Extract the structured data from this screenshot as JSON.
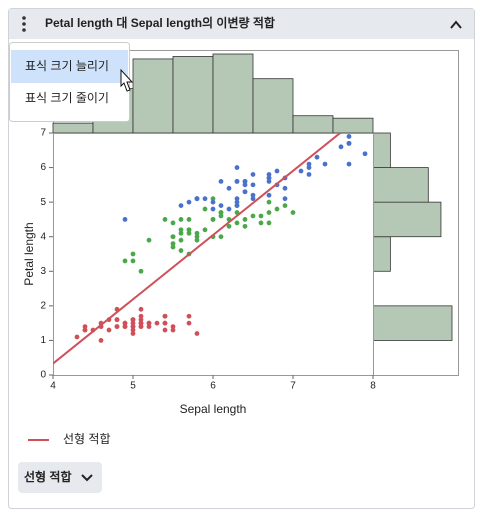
{
  "header": {
    "title": "Petal length 대 Sepal length의 이변량 적합"
  },
  "menu": {
    "items": [
      "표식 크기 늘리기",
      "표식 크기 줄이기"
    ]
  },
  "button": {
    "label": "선형 적합"
  },
  "chart_data": {
    "type": "scatter",
    "xlabel": "Sepal length",
    "ylabel": "Petal length",
    "xlim": [
      4,
      8
    ],
    "ylim": [
      0,
      7
    ],
    "xticks": [
      4,
      5,
      6,
      7,
      8
    ],
    "yticks": [
      0,
      1,
      2,
      3,
      4,
      5,
      6,
      7
    ],
    "series": [
      {
        "color": "#d0505a",
        "x": [
          5.1,
          4.9,
          4.7,
          4.6,
          5.0,
          5.4,
          4.6,
          5.0,
          4.4,
          4.9,
          5.4,
          4.8,
          4.8,
          4.3,
          5.8,
          5.7,
          5.4,
          5.1,
          5.7,
          5.1,
          5.4,
          5.1,
          4.6,
          5.1,
          4.8,
          5.0,
          5.0,
          5.2,
          5.2,
          4.7,
          4.8,
          5.4,
          5.2,
          5.5,
          4.9,
          5.0,
          5.5,
          4.9,
          4.4,
          5.1,
          5.0,
          4.5,
          4.4,
          5.0,
          5.1,
          4.8,
          5.1,
          4.6,
          5.3,
          5.0
        ],
        "values": [
          1.4,
          1.4,
          1.3,
          1.5,
          1.4,
          1.7,
          1.4,
          1.5,
          1.4,
          1.5,
          1.5,
          1.6,
          1.4,
          1.1,
          1.2,
          1.5,
          1.3,
          1.4,
          1.7,
          1.5,
          1.7,
          1.5,
          1.0,
          1.7,
          1.9,
          1.6,
          1.6,
          1.5,
          1.4,
          1.6,
          1.6,
          1.5,
          1.5,
          1.4,
          1.5,
          1.2,
          1.3,
          1.4,
          1.3,
          1.5,
          1.3,
          1.3,
          1.3,
          1.6,
          1.9,
          1.4,
          1.6,
          1.4,
          1.5,
          1.4
        ]
      },
      {
        "color": "#4aa84a",
        "x": [
          7.0,
          6.4,
          6.9,
          5.5,
          6.5,
          5.7,
          6.3,
          4.9,
          6.6,
          5.2,
          5.0,
          5.9,
          6.0,
          6.1,
          5.6,
          6.7,
          5.6,
          5.8,
          6.2,
          5.6,
          5.9,
          6.1,
          6.3,
          6.1,
          6.4,
          6.6,
          6.8,
          6.7,
          6.0,
          5.7,
          5.5,
          5.5,
          5.8,
          6.0,
          5.4,
          6.0,
          6.7,
          6.3,
          5.6,
          5.5,
          5.5,
          6.1,
          5.8,
          5.0,
          5.6,
          5.7,
          5.7,
          6.2,
          5.1,
          5.7
        ],
        "values": [
          4.7,
          4.5,
          4.9,
          4.0,
          4.6,
          4.5,
          4.7,
          3.3,
          4.6,
          3.9,
          3.5,
          4.2,
          4.0,
          4.7,
          3.6,
          4.4,
          4.5,
          4.1,
          4.5,
          3.9,
          4.8,
          4.0,
          4.9,
          4.7,
          4.3,
          4.4,
          4.8,
          5.0,
          4.5,
          3.5,
          3.8,
          3.7,
          3.9,
          5.1,
          4.5,
          4.5,
          4.7,
          4.4,
          4.1,
          4.0,
          4.4,
          4.6,
          4.0,
          3.3,
          4.2,
          4.2,
          4.2,
          4.3,
          3.0,
          4.1
        ]
      },
      {
        "color": "#4a72cc",
        "x": [
          6.3,
          5.8,
          7.1,
          6.3,
          6.5,
          7.6,
          4.9,
          7.3,
          6.7,
          7.2,
          6.5,
          6.4,
          6.8,
          5.7,
          5.8,
          6.4,
          6.5,
          7.7,
          7.7,
          6.0,
          6.9,
          5.6,
          7.7,
          6.3,
          6.7,
          7.2,
          6.2,
          6.1,
          6.4,
          7.2,
          7.4,
          7.9,
          6.4,
          6.3,
          6.1,
          7.7,
          6.3,
          6.4,
          6.0,
          6.9,
          6.7,
          6.9,
          5.8,
          6.8,
          6.7,
          6.7,
          6.3,
          6.5,
          6.2,
          5.9
        ],
        "values": [
          6.0,
          5.1,
          5.9,
          5.6,
          5.8,
          6.6,
          4.5,
          6.3,
          5.8,
          6.1,
          5.1,
          5.3,
          5.5,
          5.0,
          5.1,
          5.3,
          5.5,
          6.7,
          6.9,
          5.0,
          5.7,
          4.9,
          6.7,
          4.9,
          5.7,
          6.0,
          4.8,
          4.9,
          5.6,
          5.8,
          6.1,
          6.4,
          5.6,
          5.1,
          5.6,
          6.1,
          5.6,
          5.5,
          4.8,
          5.4,
          5.6,
          5.1,
          5.1,
          5.9,
          5.7,
          5.2,
          5.0,
          5.2,
          5.4,
          5.1
        ]
      }
    ],
    "fit_line": {
      "name": "선형 적합",
      "intercept": -7.101,
      "slope": 1.858,
      "color": "#d0505a"
    },
    "x_histogram": {
      "bins": [
        4,
        4.5,
        5,
        5.5,
        6,
        6.5,
        7,
        7.5,
        8
      ],
      "counts": [
        4,
        18,
        30,
        31,
        32,
        22,
        7,
        6
      ],
      "color": "#b5c7b5"
    },
    "y_histogram": {
      "bins": [
        1,
        2,
        3,
        4,
        5,
        6,
        7
      ],
      "counts": [
        50,
        0,
        11,
        43,
        35,
        11
      ],
      "color": "#b5c7b5"
    }
  }
}
